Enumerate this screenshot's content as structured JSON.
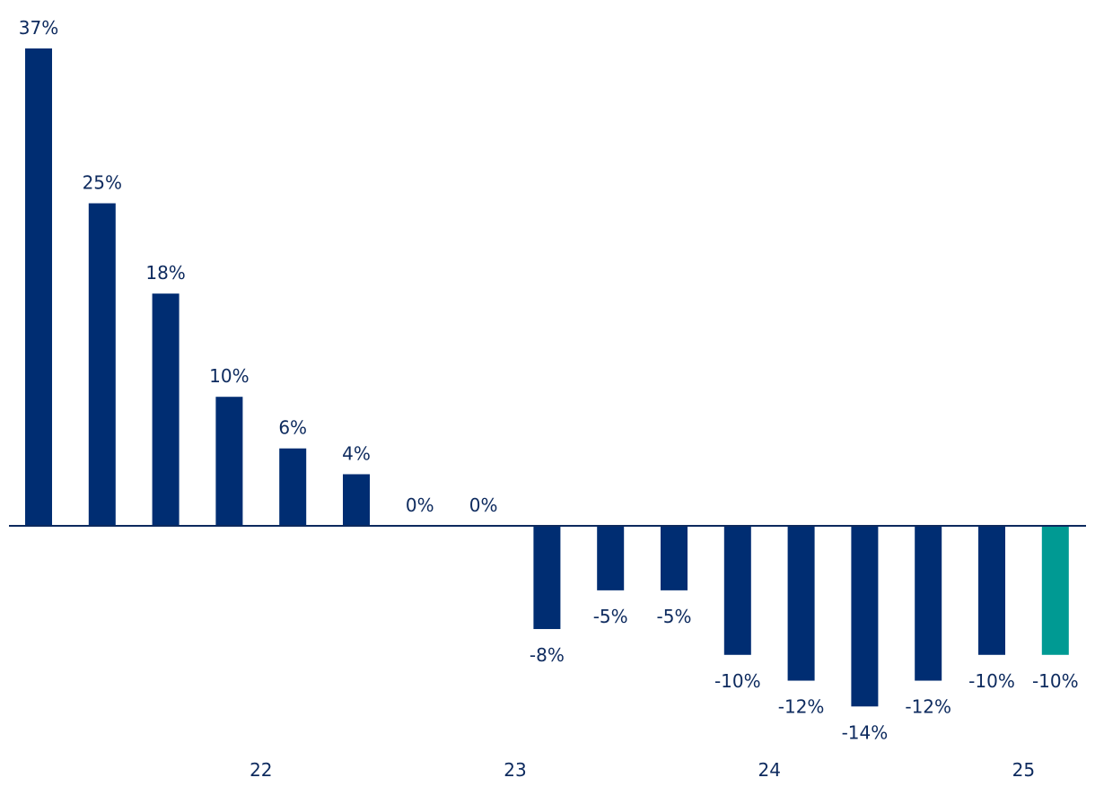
{
  "chart_data": {
    "type": "bar",
    "title": "",
    "xlabel": "",
    "ylabel": "",
    "ylim": [
      -14,
      37
    ],
    "grid": false,
    "legend": "none",
    "values": [
      37,
      25,
      18,
      10,
      6,
      4,
      0,
      0,
      -8,
      -5,
      -5,
      -10,
      -12,
      -14,
      -12,
      -10,
      -10
    ],
    "value_labels": [
      "37%",
      "25%",
      "18%",
      "10%",
      "6%",
      "4%",
      "0%",
      "0%",
      "-8%",
      "-5%",
      "-5%",
      "-10%",
      "-12%",
      "-14%",
      "-12%",
      "-10%",
      "-10%"
    ],
    "x_tick_labels": [
      {
        "label": "22",
        "after_bar": 3
      },
      {
        "label": "23",
        "after_bar": 7
      },
      {
        "label": "24",
        "after_bar": 11
      },
      {
        "label": "25",
        "after_bar": 15
      }
    ],
    "bar_color": "#002d72",
    "highlight_index": 16,
    "highlight_color": "#009a93",
    "label_color": "#0d2a5e"
  }
}
